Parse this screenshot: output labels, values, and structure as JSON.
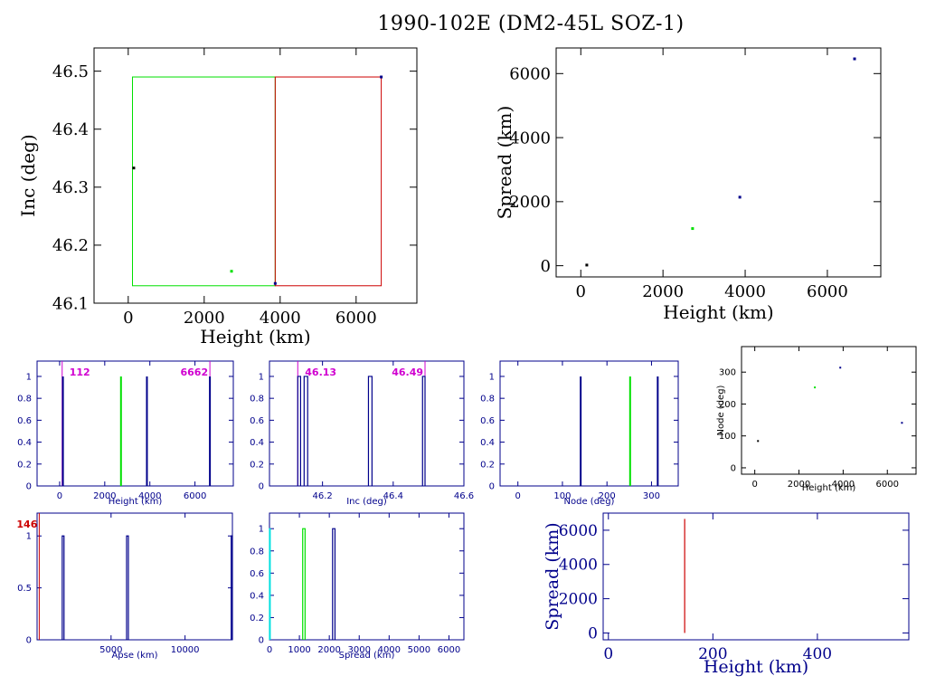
{
  "page": {
    "title": "1990-102E (DM2-45L SOZ-1)"
  },
  "colors": {
    "black": "#000000",
    "green": "#00e000",
    "blue": "#00008b",
    "red": "#cc0000",
    "magenta": "#d000d0",
    "navy": "#00008b"
  },
  "chart_data": [
    {
      "id": "inc-vs-height",
      "type": "scatter",
      "xlabel": "Height (km)",
      "ylabel": "Inc (deg)",
      "xlim": [
        -900,
        7600
      ],
      "ylim": [
        46.1,
        46.54
      ],
      "xticks": [
        0,
        2000,
        4000,
        6000
      ],
      "yticks": [
        46.1,
        46.2,
        46.3,
        46.4,
        46.5
      ],
      "ytick_labels": [
        "46.1",
        "46.2",
        "46.3",
        "46.4",
        "46.5"
      ],
      "points": [
        {
          "x": 146,
          "y": 46.333,
          "color": "#000000"
        },
        {
          "x": 2720,
          "y": 46.155,
          "color": "#00e000"
        },
        {
          "x": 3870,
          "y": 46.134,
          "color": "#00008b"
        },
        {
          "x": 6662,
          "y": 46.49,
          "color": "#00008b"
        }
      ],
      "boxes": [
        {
          "x0": 112,
          "x1": 3870,
          "y0": 46.13,
          "y1": 46.49,
          "color": "#00e000"
        },
        {
          "x0": 3870,
          "x1": 6662,
          "y0": 46.13,
          "y1": 46.49,
          "color": "#cc0000"
        }
      ]
    },
    {
      "id": "spread-vs-height",
      "type": "scatter",
      "xlabel": "Height (km)",
      "ylabel": "Spread (km)",
      "xlim": [
        -600,
        7300
      ],
      "ylim": [
        -350,
        6800
      ],
      "xticks": [
        0,
        2000,
        4000,
        6000
      ],
      "yticks": [
        0,
        2000,
        4000,
        6000
      ],
      "points": [
        {
          "x": 146,
          "y": 20,
          "color": "#000000"
        },
        {
          "x": 2720,
          "y": 1160,
          "color": "#00e000"
        },
        {
          "x": 3870,
          "y": 2140,
          "color": "#00008b"
        },
        {
          "x": 6662,
          "y": 6460,
          "color": "#00008b"
        }
      ]
    },
    {
      "id": "height-hist",
      "type": "bar",
      "xlabel": "Height (km)",
      "xlim": [
        -1000,
        7700
      ],
      "ylim": [
        0,
        1.14
      ],
      "xticks": [
        0,
        2000,
        4000,
        6000
      ],
      "yticks": [
        0,
        0.2,
        0.4,
        0.6,
        0.8,
        1
      ],
      "ytick_labels": [
        "0",
        "0.2",
        "0.4",
        "0.6",
        "0.8",
        "1"
      ],
      "bars": [
        {
          "x": 146,
          "y": 1,
          "color": "#00008b"
        },
        {
          "x": 2720,
          "y": 1,
          "color": "#00e000"
        },
        {
          "x": 3870,
          "y": 1,
          "color": "#00008b"
        },
        {
          "x": 6662,
          "y": 1,
          "color": "#00008b"
        }
      ],
      "markers": [
        {
          "x": 112,
          "label": "112",
          "color": "#d000d0",
          "align": "right"
        },
        {
          "x": 6662,
          "label": "6662",
          "color": "#d000d0",
          "align": "left"
        }
      ]
    },
    {
      "id": "inc-hist",
      "type": "bar",
      "xlabel": "Inc (deg)",
      "xlim": [
        46.05,
        46.6
      ],
      "ylim": [
        0,
        1.14
      ],
      "xticks": [
        46.2,
        46.4,
        46.6
      ],
      "xtick_labels": [
        "46.2",
        "46.4",
        "46.6"
      ],
      "yticks": [
        0,
        0.2,
        0.4,
        0.6,
        0.8,
        1
      ],
      "ytick_labels": [
        "0",
        "0.2",
        "0.4",
        "0.6",
        "0.8",
        "1"
      ],
      "bars": [
        {
          "x0": 46.13,
          "x1": 46.138,
          "y": 1,
          "color": "#00008b"
        },
        {
          "x0": 46.148,
          "x1": 46.158,
          "y": 1,
          "color": "#00008b"
        },
        {
          "x0": 46.33,
          "x1": 46.34,
          "y": 1,
          "color": "#00008b"
        },
        {
          "x0": 46.483,
          "x1": 46.49,
          "y": 1,
          "color": "#00008b"
        }
      ],
      "markers": [
        {
          "x": 46.13,
          "label": "46.13",
          "color": "#d000d0",
          "align": "right"
        },
        {
          "x": 46.49,
          "label": "46.49",
          "color": "#d000d0",
          "align": "left"
        }
      ]
    },
    {
      "id": "node-hist",
      "type": "bar",
      "xlabel": "Node (deg)",
      "xlim": [
        -40,
        360
      ],
      "ylim": [
        0,
        1.14
      ],
      "xticks": [
        0,
        100,
        200,
        300
      ],
      "yticks": [
        0,
        0.2,
        0.4,
        0.6,
        0.8,
        1
      ],
      "ytick_labels": [
        "0",
        "0.2",
        "0.4",
        "0.6",
        "0.8",
        "1"
      ],
      "bars": [
        {
          "x": 141,
          "y": 1,
          "color": "#00008b"
        },
        {
          "x": 252,
          "y": 1,
          "color": "#00e000"
        },
        {
          "x": 314,
          "y": 1,
          "color": "#00008b"
        }
      ]
    },
    {
      "id": "node-vs-height",
      "type": "scatter",
      "xlabel": "Height (km)",
      "ylabel": "Node (deg)",
      "xlim": [
        -600,
        7300
      ],
      "ylim": [
        -20,
        380
      ],
      "xticks": [
        0,
        2000,
        4000,
        6000
      ],
      "yticks": [
        0,
        100,
        200,
        300
      ],
      "points": [
        {
          "x": 146,
          "y": 84,
          "color": "#000000"
        },
        {
          "x": 2720,
          "y": 252,
          "color": "#00e000"
        },
        {
          "x": 3870,
          "y": 314,
          "color": "#00008b"
        },
        {
          "x": 6662,
          "y": 141,
          "color": "#00008b"
        }
      ]
    },
    {
      "id": "apse-hist",
      "type": "bar",
      "xlabel": "Apse (km)",
      "xlim": [
        0,
        13200
      ],
      "ylim": [
        0,
        1.22
      ],
      "xticks": [
        5000,
        10000
      ],
      "yticks": [
        0,
        0.5,
        1
      ],
      "ytick_labels": [
        "0",
        "0.5",
        "1"
      ],
      "bars": [
        {
          "x0": 1700,
          "x1": 1820,
          "y": 1,
          "color": "#00008b"
        },
        {
          "x0": 6050,
          "x1": 6170,
          "y": 1,
          "color": "#00008b"
        },
        {
          "x0": 13120,
          "x1": 13200,
          "y": 1,
          "color": "#00008b"
        }
      ],
      "markers": [
        {
          "x": 146,
          "label": "146",
          "color": "#cc0000",
          "align": "left"
        }
      ]
    },
    {
      "id": "spread-hist",
      "type": "bar",
      "xlabel": "Spread (km)",
      "xlim": [
        0,
        6500
      ],
      "ylim": [
        0,
        1.14
      ],
      "xticks": [
        0,
        1000,
        2000,
        3000,
        4000,
        5000,
        6000
      ],
      "yticks": [
        0,
        0.2,
        0.4,
        0.6,
        0.8,
        1
      ],
      "ytick_labels": [
        "0",
        "0.2",
        "0.4",
        "0.6",
        "0.8",
        "1"
      ],
      "bars": [
        {
          "x0": 0,
          "x1": 25,
          "y": 1,
          "color": "#00e0e0"
        },
        {
          "x0": 1110,
          "x1": 1190,
          "y": 1,
          "color": "#00e000"
        },
        {
          "x0": 2110,
          "x1": 2190,
          "y": 1,
          "color": "#00008b"
        }
      ]
    },
    {
      "id": "spread-vs-perigee",
      "type": "line",
      "xlabel": "Height (km)",
      "ylabel": "Spread (km)",
      "xlim": [
        -10,
        575
      ],
      "ylim": [
        -400,
        7000
      ],
      "xticks": [
        0,
        200,
        400
      ],
      "yticks": [
        0,
        2000,
        4000,
        6000
      ],
      "segments": [
        {
          "x0": 146,
          "y0": 0,
          "x1": 146,
          "y1": 6662,
          "color": "#cc0000"
        }
      ]
    }
  ]
}
